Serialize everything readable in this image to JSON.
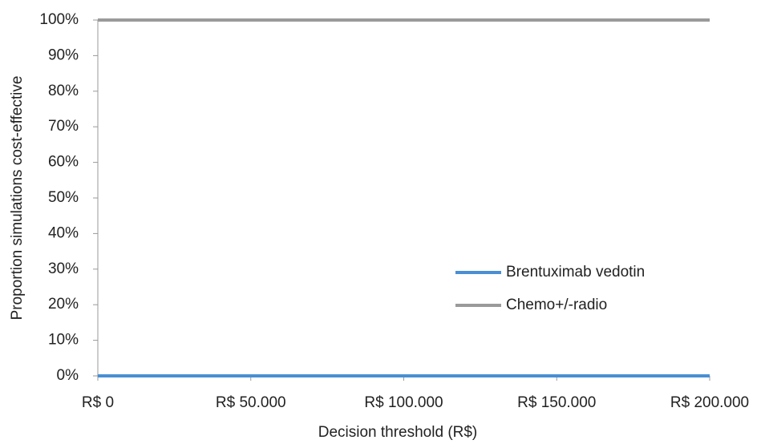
{
  "chart_data": {
    "type": "line",
    "x_label": "Decision threshold (R$)",
    "y_label": "Proportion simulations cost-effective",
    "x": [
      0,
      200000
    ],
    "series": [
      {
        "name": "Brentuximab vedotin",
        "color": "#4a8fd4",
        "values": [
          0,
          0
        ]
      },
      {
        "name": "Chemo+/-radio",
        "color": "#9a9a9a",
        "values": [
          100,
          100
        ]
      }
    ],
    "xlim": [
      0,
      200000
    ],
    "xticks": [
      {
        "value": 0,
        "label": "R$ 0"
      },
      {
        "value": 50000,
        "label": "R$ 50.000"
      },
      {
        "value": 100000,
        "label": "R$ 100.000"
      },
      {
        "value": 150000,
        "label": "R$ 150.000"
      },
      {
        "value": 200000,
        "label": "R$ 200.000"
      }
    ],
    "ylim": [
      0,
      100
    ],
    "yticks": [
      {
        "value": 0,
        "label": "0%"
      },
      {
        "value": 10,
        "label": "10%"
      },
      {
        "value": 20,
        "label": "20%"
      },
      {
        "value": 30,
        "label": "30%"
      },
      {
        "value": 40,
        "label": "40%"
      },
      {
        "value": 50,
        "label": "50%"
      },
      {
        "value": 60,
        "label": "60%"
      },
      {
        "value": 70,
        "label": "70%"
      },
      {
        "value": 80,
        "label": "80%"
      },
      {
        "value": 90,
        "label": "90%"
      },
      {
        "value": 100,
        "label": "100%"
      }
    ],
    "grid": false
  }
}
